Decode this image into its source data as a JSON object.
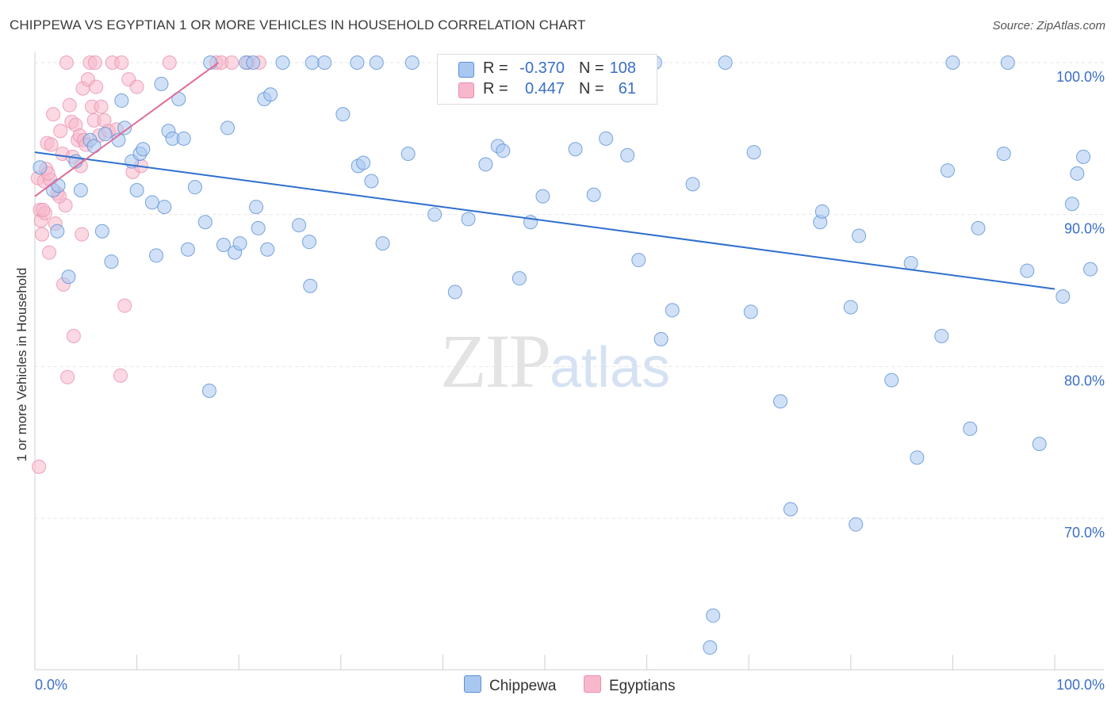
{
  "title": "CHIPPEWA VS EGYPTIAN 1 OR MORE VEHICLES IN HOUSEHOLD CORRELATION CHART",
  "source": "Source: ZipAtlas.com",
  "watermark": {
    "zip": "ZIP",
    "atlas": "atlas"
  },
  "legend": {
    "rows": [
      {
        "r_label": "R =",
        "r_value": "-0.370",
        "n_label": "N =",
        "n_value": "108",
        "color": "#a9c8f0"
      },
      {
        "r_label": "R =",
        "r_value": "0.447",
        "n_label": "N =",
        "n_value": "61",
        "color": "#f7b8cb"
      }
    ]
  },
  "bottom_legend": {
    "chippewa": "Chippewa",
    "egyptians": "Egyptians"
  },
  "colors": {
    "chippewa_fill": "#a9c8f0",
    "chippewa_stroke": "#5a8fd6",
    "chippewa_line": "#2f6fce",
    "egyptian_fill": "#f7b8cb",
    "egyptian_stroke": "#e890ac",
    "egyptian_line": "#e06c95",
    "tick_label": "#3a6fc8",
    "grid": "#e6e6e6"
  },
  "chart_data": {
    "type": "scatter",
    "title": "CHIPPEWA VS EGYPTIAN 1 OR MORE VEHICLES IN HOUSEHOLD CORRELATION CHART",
    "xlabel": "",
    "ylabel": "1 or more Vehicles in Household",
    "xlim": [
      0,
      100
    ],
    "ylim": [
      60,
      101.5
    ],
    "x_tick_labels": [
      "0.0%",
      "100.0%"
    ],
    "y_ticks": [
      100,
      90,
      80,
      70
    ],
    "y_tick_labels": [
      "100.0%",
      "90.0%",
      "80.0%",
      "70.0%"
    ],
    "series": [
      {
        "name": "Chippewa",
        "r": -0.37,
        "n": 108,
        "trend": {
          "x": [
            0,
            100
          ],
          "y": [
            94.1,
            85.1
          ]
        },
        "points": [
          [
            0.5,
            93.1
          ],
          [
            1.8,
            91.6
          ],
          [
            2.3,
            91.9
          ],
          [
            2.2,
            88.9
          ],
          [
            3.3,
            85.9
          ],
          [
            4.0,
            93.5
          ],
          [
            4.5,
            91.6
          ],
          [
            5.4,
            94.9
          ],
          [
            5.8,
            94.5
          ],
          [
            6.6,
            88.9
          ],
          [
            6.9,
            95.3
          ],
          [
            7.5,
            86.9
          ],
          [
            8.2,
            94.9
          ],
          [
            8.5,
            97.5
          ],
          [
            8.8,
            95.7
          ],
          [
            9.5,
            93.5
          ],
          [
            10.0,
            91.6
          ],
          [
            10.3,
            94.0
          ],
          [
            10.6,
            94.3
          ],
          [
            11.5,
            90.8
          ],
          [
            11.9,
            87.3
          ],
          [
            12.4,
            98.6
          ],
          [
            12.7,
            90.5
          ],
          [
            13.1,
            95.5
          ],
          [
            13.5,
            95.0
          ],
          [
            14.1,
            97.6
          ],
          [
            14.6,
            95.0
          ],
          [
            15.0,
            87.7
          ],
          [
            15.7,
            91.8
          ],
          [
            16.7,
            89.5
          ],
          [
            17.1,
            78.4
          ],
          [
            18.5,
            88.0
          ],
          [
            18.9,
            95.7
          ],
          [
            19.6,
            87.5
          ],
          [
            20.1,
            88.1
          ],
          [
            21.7,
            90.5
          ],
          [
            21.9,
            89.1
          ],
          [
            22.5,
            97.6
          ],
          [
            22.8,
            87.7
          ],
          [
            23.1,
            97.9
          ],
          [
            24.3,
            100.0
          ],
          [
            25.9,
            89.3
          ],
          [
            26.9,
            88.2
          ],
          [
            27.0,
            85.3
          ],
          [
            27.2,
            100.0
          ],
          [
            28.4,
            100.0
          ],
          [
            30.2,
            96.6
          ],
          [
            31.7,
            93.2
          ],
          [
            32.2,
            93.4
          ],
          [
            33.0,
            92.2
          ],
          [
            34.1,
            88.1
          ],
          [
            36.6,
            94.0
          ],
          [
            39.2,
            90.0
          ],
          [
            41.2,
            84.9
          ],
          [
            42.5,
            89.7
          ],
          [
            44.2,
            93.3
          ],
          [
            45.4,
            94.5
          ],
          [
            45.9,
            94.2
          ],
          [
            47.5,
            85.8
          ],
          [
            48.6,
            89.5
          ],
          [
            49.8,
            91.2
          ],
          [
            53.0,
            94.3
          ],
          [
            54.8,
            91.3
          ],
          [
            56.0,
            95.0
          ],
          [
            58.1,
            93.9
          ],
          [
            59.2,
            87.0
          ],
          [
            61.4,
            81.8
          ],
          [
            62.5,
            83.7
          ],
          [
            64.5,
            92.0
          ],
          [
            66.2,
            61.5
          ],
          [
            66.5,
            63.6
          ],
          [
            67.7,
            100.0
          ],
          [
            70.2,
            83.6
          ],
          [
            70.5,
            94.1
          ],
          [
            73.1,
            77.7
          ],
          [
            74.1,
            70.6
          ],
          [
            77.0,
            89.5
          ],
          [
            77.2,
            90.2
          ],
          [
            80.0,
            83.9
          ],
          [
            80.5,
            69.6
          ],
          [
            80.8,
            88.6
          ],
          [
            84.0,
            79.1
          ],
          [
            85.9,
            86.8
          ],
          [
            86.5,
            74.0
          ],
          [
            88.9,
            82.0
          ],
          [
            89.5,
            92.9
          ],
          [
            90.0,
            100.0
          ],
          [
            91.7,
            75.9
          ],
          [
            92.5,
            89.1
          ],
          [
            95.0,
            94.0
          ],
          [
            95.4,
            100.0
          ],
          [
            97.3,
            86.3
          ],
          [
            98.5,
            74.9
          ],
          [
            100.8,
            84.6
          ],
          [
            101.7,
            90.7
          ],
          [
            102.2,
            92.7
          ],
          [
            102.8,
            93.8
          ],
          [
            103.5,
            86.4
          ],
          [
            46.0,
            100.0
          ],
          [
            49.5,
            100.0
          ],
          [
            50.5,
            100.0
          ],
          [
            17.2,
            100.0
          ],
          [
            20.7,
            100.0
          ],
          [
            21.4,
            100.0
          ],
          [
            33.5,
            100.0
          ],
          [
            31.6,
            100.0
          ],
          [
            60.8,
            100.0
          ],
          [
            37.0,
            100.0
          ]
        ]
      },
      {
        "name": "Egyptians",
        "r": 0.447,
        "n": 61,
        "trend": {
          "x": [
            0,
            18
          ],
          "y": [
            91.2,
            100.0
          ]
        },
        "points": [
          [
            0.3,
            92.4
          ],
          [
            0.5,
            90.3
          ],
          [
            0.6,
            89.6
          ],
          [
            0.7,
            88.7
          ],
          [
            0.9,
            92.2
          ],
          [
            1.0,
            90.1
          ],
          [
            1.1,
            93.0
          ],
          [
            1.2,
            94.7
          ],
          [
            1.4,
            87.5
          ],
          [
            1.6,
            94.6
          ],
          [
            1.8,
            96.6
          ],
          [
            2.0,
            89.4
          ],
          [
            2.2,
            91.4
          ],
          [
            2.5,
            95.5
          ],
          [
            2.7,
            94.0
          ],
          [
            2.8,
            85.4
          ],
          [
            3.0,
            90.6
          ],
          [
            3.2,
            79.3
          ],
          [
            3.4,
            97.2
          ],
          [
            3.6,
            96.1
          ],
          [
            3.8,
            82.0
          ],
          [
            4.0,
            95.9
          ],
          [
            4.2,
            94.9
          ],
          [
            4.4,
            95.2
          ],
          [
            4.5,
            93.2
          ],
          [
            4.6,
            88.7
          ],
          [
            4.7,
            98.3
          ],
          [
            4.8,
            94.9
          ],
          [
            5.0,
            94.6
          ],
          [
            5.2,
            98.9
          ],
          [
            5.4,
            100.0
          ],
          [
            5.6,
            97.1
          ],
          [
            5.8,
            96.2
          ],
          [
            6.0,
            98.4
          ],
          [
            6.3,
            95.2
          ],
          [
            6.5,
            97.1
          ],
          [
            6.8,
            96.2
          ],
          [
            7.2,
            95.5
          ],
          [
            7.6,
            100.0
          ],
          [
            8.0,
            95.6
          ],
          [
            8.4,
            79.4
          ],
          [
            8.8,
            84.0
          ],
          [
            9.2,
            98.9
          ],
          [
            9.6,
            92.8
          ],
          [
            10.0,
            98.4
          ],
          [
            10.4,
            93.2
          ],
          [
            13.2,
            100.0
          ],
          [
            17.8,
            100.0
          ],
          [
            18.3,
            100.0
          ],
          [
            19.3,
            100.0
          ],
          [
            20.9,
            100.0
          ],
          [
            22.0,
            100.0
          ],
          [
            0.4,
            73.4
          ],
          [
            3.1,
            100.0
          ],
          [
            5.9,
            100.0
          ],
          [
            8.5,
            100.0
          ],
          [
            1.5,
            92.3
          ],
          [
            2.4,
            91.2
          ],
          [
            0.8,
            90.3
          ],
          [
            1.3,
            92.7
          ],
          [
            3.7,
            93.8
          ]
        ]
      }
    ]
  }
}
